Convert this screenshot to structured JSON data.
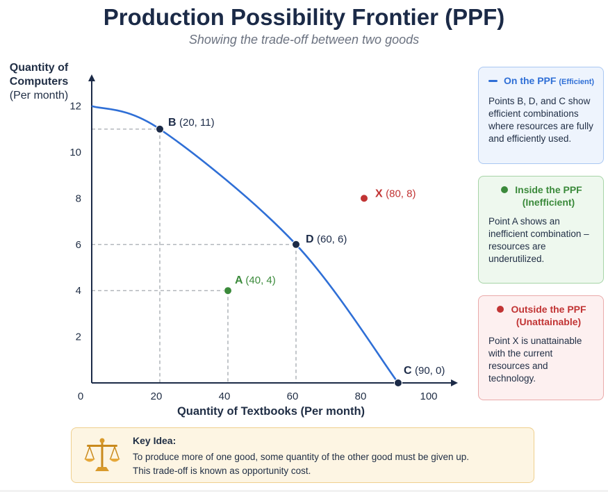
{
  "chart_data": {
    "type": "line",
    "title": "Production Possibility Frontier (PPF)",
    "subtitle": "Showing the trade-off between two goods",
    "xlabel": "Quantity of Textbooks (Per month)",
    "ylabel_lines": [
      "Quantity of",
      "Computers",
      "(Per month)"
    ],
    "x_ticks": [
      0,
      20,
      40,
      60,
      80,
      100
    ],
    "y_ticks": [
      2,
      4,
      6,
      8,
      10,
      12
    ],
    "series": [
      {
        "points": [
          {
            "x": 0,
            "y": 12
          },
          {
            "x": 20,
            "y": 11
          },
          {
            "x": 60,
            "y": 6
          },
          {
            "x": 90,
            "y": 0
          }
        ]
      }
    ],
    "annotated_points": [
      {
        "key": "B",
        "label": "B",
        "coord": "(20, 11)",
        "x": 20,
        "y": 11,
        "color": "#1b2a47",
        "label_color": "#1b2a47",
        "guides": true
      },
      {
        "key": "D",
        "label": "D",
        "coord": "(60, 6)",
        "x": 60,
        "y": 6,
        "color": "#1b2a47",
        "label_color": "#1b2a47",
        "guides": true
      },
      {
        "key": "C",
        "label": "C",
        "coord": "(90, 0)",
        "x": 90,
        "y": 0,
        "color": "#1b2a47",
        "label_color": "#1b2a47",
        "guides": false
      },
      {
        "key": "A",
        "label": "A",
        "coord": "(40, 4)",
        "x": 40,
        "y": 4,
        "color": "#3b8a3b",
        "label_color": "#3b8a3b",
        "guides": true
      },
      {
        "key": "X",
        "label": "X",
        "coord": "(80, 8)",
        "x": 80,
        "y": 8,
        "color": "#c13434",
        "label_color": "#c13434",
        "guides": false
      }
    ],
    "grid": false,
    "legend": "right"
  },
  "legend_cards": {
    "efficient": {
      "title": "On the PPF",
      "qualifier": "(Efficient)",
      "body": "Points B, D, and C show efficient combinations where resources are fully and efficiently used.",
      "color": "#2f6fd6"
    },
    "inefficient": {
      "title": "Inside the PPF",
      "qualifier": "(Inefficient)",
      "body": "Point A shows an inefficient combination – resources are underutilized.",
      "color": "#3b8a3b"
    },
    "unattainable": {
      "title": "Outside the PPF",
      "qualifier": "(Unattainable)",
      "body": "Point X is unattainable with the current resources and technology.",
      "color": "#c13434"
    }
  },
  "key_idea": {
    "title": "Key Idea:",
    "line1": "To produce more of one good, some quantity of the other good must be given up.",
    "line2": "This trade-off is known as opportunity cost.",
    "icon": "scales-icon"
  },
  "colors": {
    "curve": "#2f6fd6",
    "axis": "#1b2a47",
    "guide": "#9aa0a6"
  }
}
